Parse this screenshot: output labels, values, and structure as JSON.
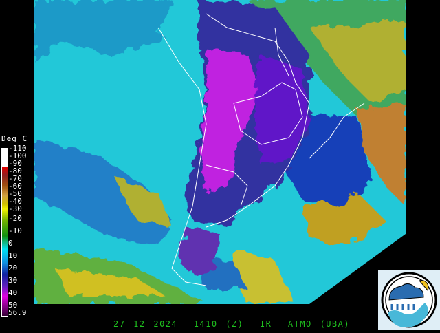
{
  "legend": {
    "title": "Deg C",
    "ticks": [
      "-110",
      "-100",
      "-90",
      "-80",
      "-70",
      "-60",
      "-50",
      "-40",
      "-30",
      "-20",
      "-10",
      "0",
      "10",
      "20",
      "30",
      "40",
      "50",
      "56.9"
    ],
    "colors": [
      "#ffffff",
      "#ffffff",
      "#e00000",
      "#902020",
      "#a05010",
      "#c08020",
      "#d0a040",
      "#d0c000",
      "#f0f000",
      "#70b000",
      "#109010",
      "#10c0a0",
      "#00e0f0",
      "#1090e0",
      "#1020a0",
      "#6020c0",
      "#e000e0",
      "#300030"
    ]
  },
  "footer": {
    "date": "27 12 2024",
    "time": "1410 (Z)",
    "channel": "IR",
    "source": "ATMO (UBA)"
  },
  "logo": {
    "name": "ATMO UBA logo",
    "icon": "cloud-rain-sun-wave-icon"
  }
}
